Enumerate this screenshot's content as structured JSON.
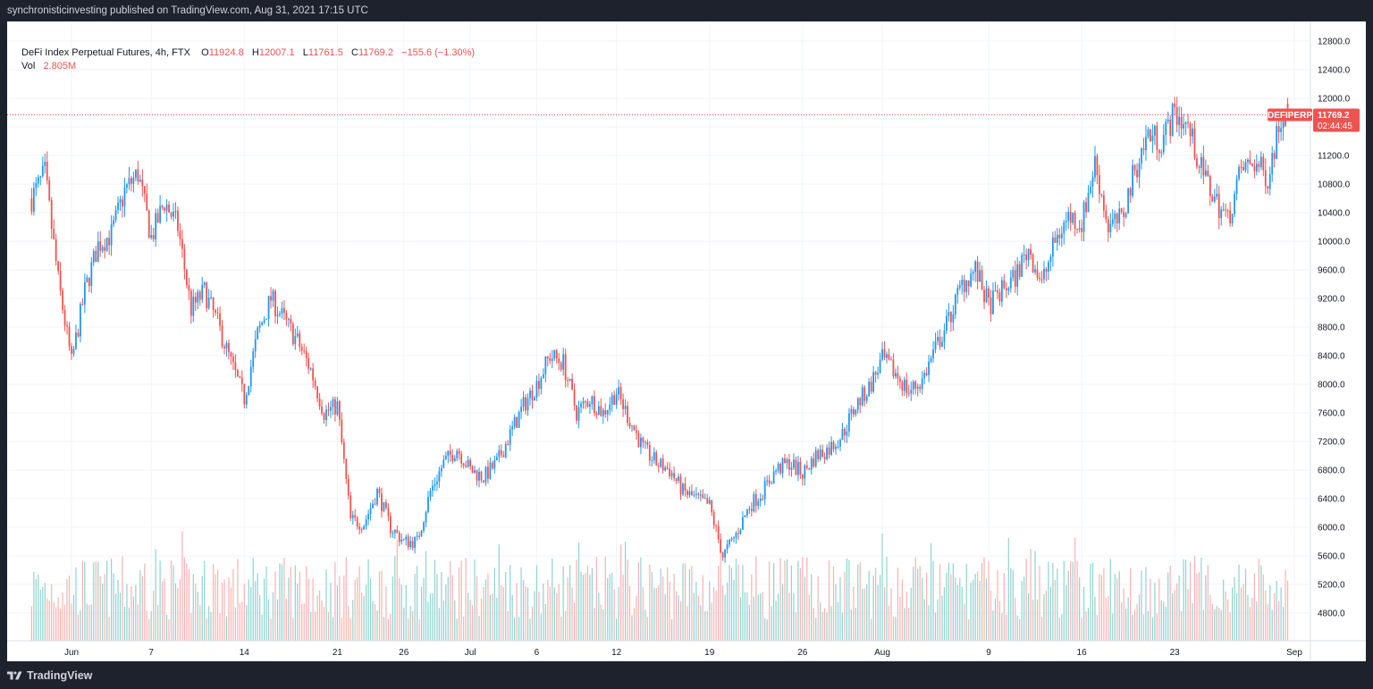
{
  "header": {
    "published_text": "synchronisticinvesting published on TradingView.com, Aug 31, 2021 17:15 UTC"
  },
  "legend": {
    "symbol": "DeFi Index Perpetual Futures, 4h, FTX",
    "o_label": "O",
    "open": "11924.8",
    "h_label": "H",
    "high": "12007.1",
    "l_label": "L",
    "low": "11761.5",
    "c_label": "C",
    "close": "11769.2",
    "change": "−155.6 (−1.30%)",
    "vol_label": "Vol",
    "volume": "2.805M"
  },
  "price_tag": {
    "ticker": "DEFIPERP",
    "price": "11769.2",
    "countdown": "02:44:45"
  },
  "brand": {
    "name": "TradingView"
  },
  "colors": {
    "up": "#2196f3",
    "down": "#ef5350",
    "up_volume": "#8fd3cf",
    "down_volume": "#f7b3b1",
    "last_price": "#ef5350",
    "background": "#ffffff",
    "frame": "#1e222d"
  },
  "chart_data": {
    "type": "candlestick",
    "interval": "4h",
    "exchange": "FTX",
    "symbol": "DEFIPERP",
    "last_price": 11769.2,
    "y_axis": {
      "ticks": [
        4800,
        5200,
        5600,
        6000,
        6400,
        6800,
        7200,
        7600,
        8000,
        8400,
        8800,
        9200,
        9600,
        10000,
        10400,
        10800,
        11200,
        11600,
        12000,
        12400,
        12800
      ],
      "tick_labels": [
        "4800.0",
        "5200.0",
        "5600.0",
        "6000.0",
        "6400.0",
        "6800.0",
        "7200.0",
        "7600.0",
        "8000.0",
        "8400.0",
        "8800.0",
        "9200.0",
        "9600.0",
        "10000.0",
        "10400.0",
        "10800.0",
        "11200.0",
        "11600.0",
        "12000.0",
        "12400.0",
        "12800.0"
      ],
      "range": [
        4400,
        13000
      ]
    },
    "x_axis": {
      "range": [
        "2021-05-29",
        "2021-09-01"
      ],
      "ticks": [
        {
          "date": "2021-06-01",
          "label": "Jun"
        },
        {
          "date": "2021-06-07",
          "label": "7"
        },
        {
          "date": "2021-06-14",
          "label": "14"
        },
        {
          "date": "2021-06-21",
          "label": "21"
        },
        {
          "date": "2021-06-26",
          "label": "26"
        },
        {
          "date": "2021-07-01",
          "label": "Jul"
        },
        {
          "date": "2021-07-06",
          "label": "6"
        },
        {
          "date": "2021-07-12",
          "label": "12"
        },
        {
          "date": "2021-07-19",
          "label": "19"
        },
        {
          "date": "2021-07-26",
          "label": "26"
        },
        {
          "date": "2021-08-01",
          "label": "Aug"
        },
        {
          "date": "2021-08-09",
          "label": "9"
        },
        {
          "date": "2021-08-16",
          "label": "16"
        },
        {
          "date": "2021-08-23",
          "label": "23"
        },
        {
          "date": "2021-09-01",
          "label": "Sep"
        }
      ]
    },
    "price_path": [
      {
        "date": "2021-05-29",
        "close": 10600
      },
      {
        "date": "2021-05-30",
        "close": 10950
      },
      {
        "date": "2021-05-31",
        "close": 9450
      },
      {
        "date": "2021-06-01",
        "close": 8300
      },
      {
        "date": "2021-06-02",
        "close": 9300
      },
      {
        "date": "2021-06-03",
        "close": 9950
      },
      {
        "date": "2021-06-04",
        "close": 10100
      },
      {
        "date": "2021-06-05",
        "close": 10700
      },
      {
        "date": "2021-06-06",
        "close": 10950
      },
      {
        "date": "2021-06-07",
        "close": 10050
      },
      {
        "date": "2021-06-08",
        "close": 10550
      },
      {
        "date": "2021-06-09",
        "close": 10200
      },
      {
        "date": "2021-06-10",
        "close": 9050
      },
      {
        "date": "2021-06-11",
        "close": 9300
      },
      {
        "date": "2021-06-12",
        "close": 8850
      },
      {
        "date": "2021-06-13",
        "close": 8300
      },
      {
        "date": "2021-06-14",
        "close": 7800
      },
      {
        "date": "2021-06-15",
        "close": 8700
      },
      {
        "date": "2021-06-16",
        "close": 9200
      },
      {
        "date": "2021-06-17",
        "close": 8900
      },
      {
        "date": "2021-06-18",
        "close": 8600
      },
      {
        "date": "2021-06-19",
        "close": 8200
      },
      {
        "date": "2021-06-20",
        "close": 7600
      },
      {
        "date": "2021-06-21",
        "close": 7700
      },
      {
        "date": "2021-06-22",
        "close": 6100
      },
      {
        "date": "2021-06-23",
        "close": 6050
      },
      {
        "date": "2021-06-24",
        "close": 6500
      },
      {
        "date": "2021-06-25",
        "close": 6000
      },
      {
        "date": "2021-06-26",
        "close": 5800
      },
      {
        "date": "2021-06-27",
        "close": 5800
      },
      {
        "date": "2021-06-28",
        "close": 6500
      },
      {
        "date": "2021-06-29",
        "close": 6900
      },
      {
        "date": "2021-06-30",
        "close": 7100
      },
      {
        "date": "2021-07-01",
        "close": 6800
      },
      {
        "date": "2021-07-02",
        "close": 6700
      },
      {
        "date": "2021-07-03",
        "close": 6900
      },
      {
        "date": "2021-07-04",
        "close": 7300
      },
      {
        "date": "2021-07-05",
        "close": 7700
      },
      {
        "date": "2021-07-06",
        "close": 8000
      },
      {
        "date": "2021-07-07",
        "close": 8400
      },
      {
        "date": "2021-07-08",
        "close": 8300
      },
      {
        "date": "2021-07-09",
        "close": 7600
      },
      {
        "date": "2021-07-10",
        "close": 7800
      },
      {
        "date": "2021-07-11",
        "close": 7600
      },
      {
        "date": "2021-07-12",
        "close": 7900
      },
      {
        "date": "2021-07-13",
        "close": 7500
      },
      {
        "date": "2021-07-14",
        "close": 7100
      },
      {
        "date": "2021-07-15",
        "close": 6900
      },
      {
        "date": "2021-07-16",
        "close": 6800
      },
      {
        "date": "2021-07-17",
        "close": 6500
      },
      {
        "date": "2021-07-18",
        "close": 6400
      },
      {
        "date": "2021-07-19",
        "close": 6300
      },
      {
        "date": "2021-07-20",
        "close": 5600
      },
      {
        "date": "2021-07-21",
        "close": 5900
      },
      {
        "date": "2021-07-22",
        "close": 6300
      },
      {
        "date": "2021-07-23",
        "close": 6500
      },
      {
        "date": "2021-07-24",
        "close": 6800
      },
      {
        "date": "2021-07-25",
        "close": 6900
      },
      {
        "date": "2021-07-26",
        "close": 6750
      },
      {
        "date": "2021-07-27",
        "close": 7000
      },
      {
        "date": "2021-07-28",
        "close": 7100
      },
      {
        "date": "2021-07-29",
        "close": 7300
      },
      {
        "date": "2021-07-30",
        "close": 7700
      },
      {
        "date": "2021-07-31",
        "close": 7950
      },
      {
        "date": "2021-08-01",
        "close": 8350
      },
      {
        "date": "2021-08-02",
        "close": 8150
      },
      {
        "date": "2021-08-03",
        "close": 7900
      },
      {
        "date": "2021-08-04",
        "close": 8050
      },
      {
        "date": "2021-08-05",
        "close": 8500
      },
      {
        "date": "2021-08-06",
        "close": 8900
      },
      {
        "date": "2021-08-07",
        "close": 9400
      },
      {
        "date": "2021-08-08",
        "close": 9600
      },
      {
        "date": "2021-08-09",
        "close": 9100
      },
      {
        "date": "2021-08-10",
        "close": 9300
      },
      {
        "date": "2021-08-11",
        "close": 9500
      },
      {
        "date": "2021-08-12",
        "close": 9900
      },
      {
        "date": "2021-08-13",
        "close": 9400
      },
      {
        "date": "2021-08-14",
        "close": 10000
      },
      {
        "date": "2021-08-15",
        "close": 10350
      },
      {
        "date": "2021-08-16",
        "close": 10250
      },
      {
        "date": "2021-08-17",
        "close": 11100
      },
      {
        "date": "2021-08-18",
        "close": 10200
      },
      {
        "date": "2021-08-19",
        "close": 10300
      },
      {
        "date": "2021-08-20",
        "close": 11000
      },
      {
        "date": "2021-08-21",
        "close": 11500
      },
      {
        "date": "2021-08-22",
        "close": 11400
      },
      {
        "date": "2021-08-23",
        "close": 11800
      },
      {
        "date": "2021-08-24",
        "close": 11600
      },
      {
        "date": "2021-08-25",
        "close": 11000
      },
      {
        "date": "2021-08-26",
        "close": 10600
      },
      {
        "date": "2021-08-27",
        "close": 10300
      },
      {
        "date": "2021-08-28",
        "close": 11000
      },
      {
        "date": "2021-08-29",
        "close": 11100
      },
      {
        "date": "2021-08-30",
        "close": 10900
      },
      {
        "date": "2021-08-31",
        "close": 11769.2
      }
    ]
  }
}
